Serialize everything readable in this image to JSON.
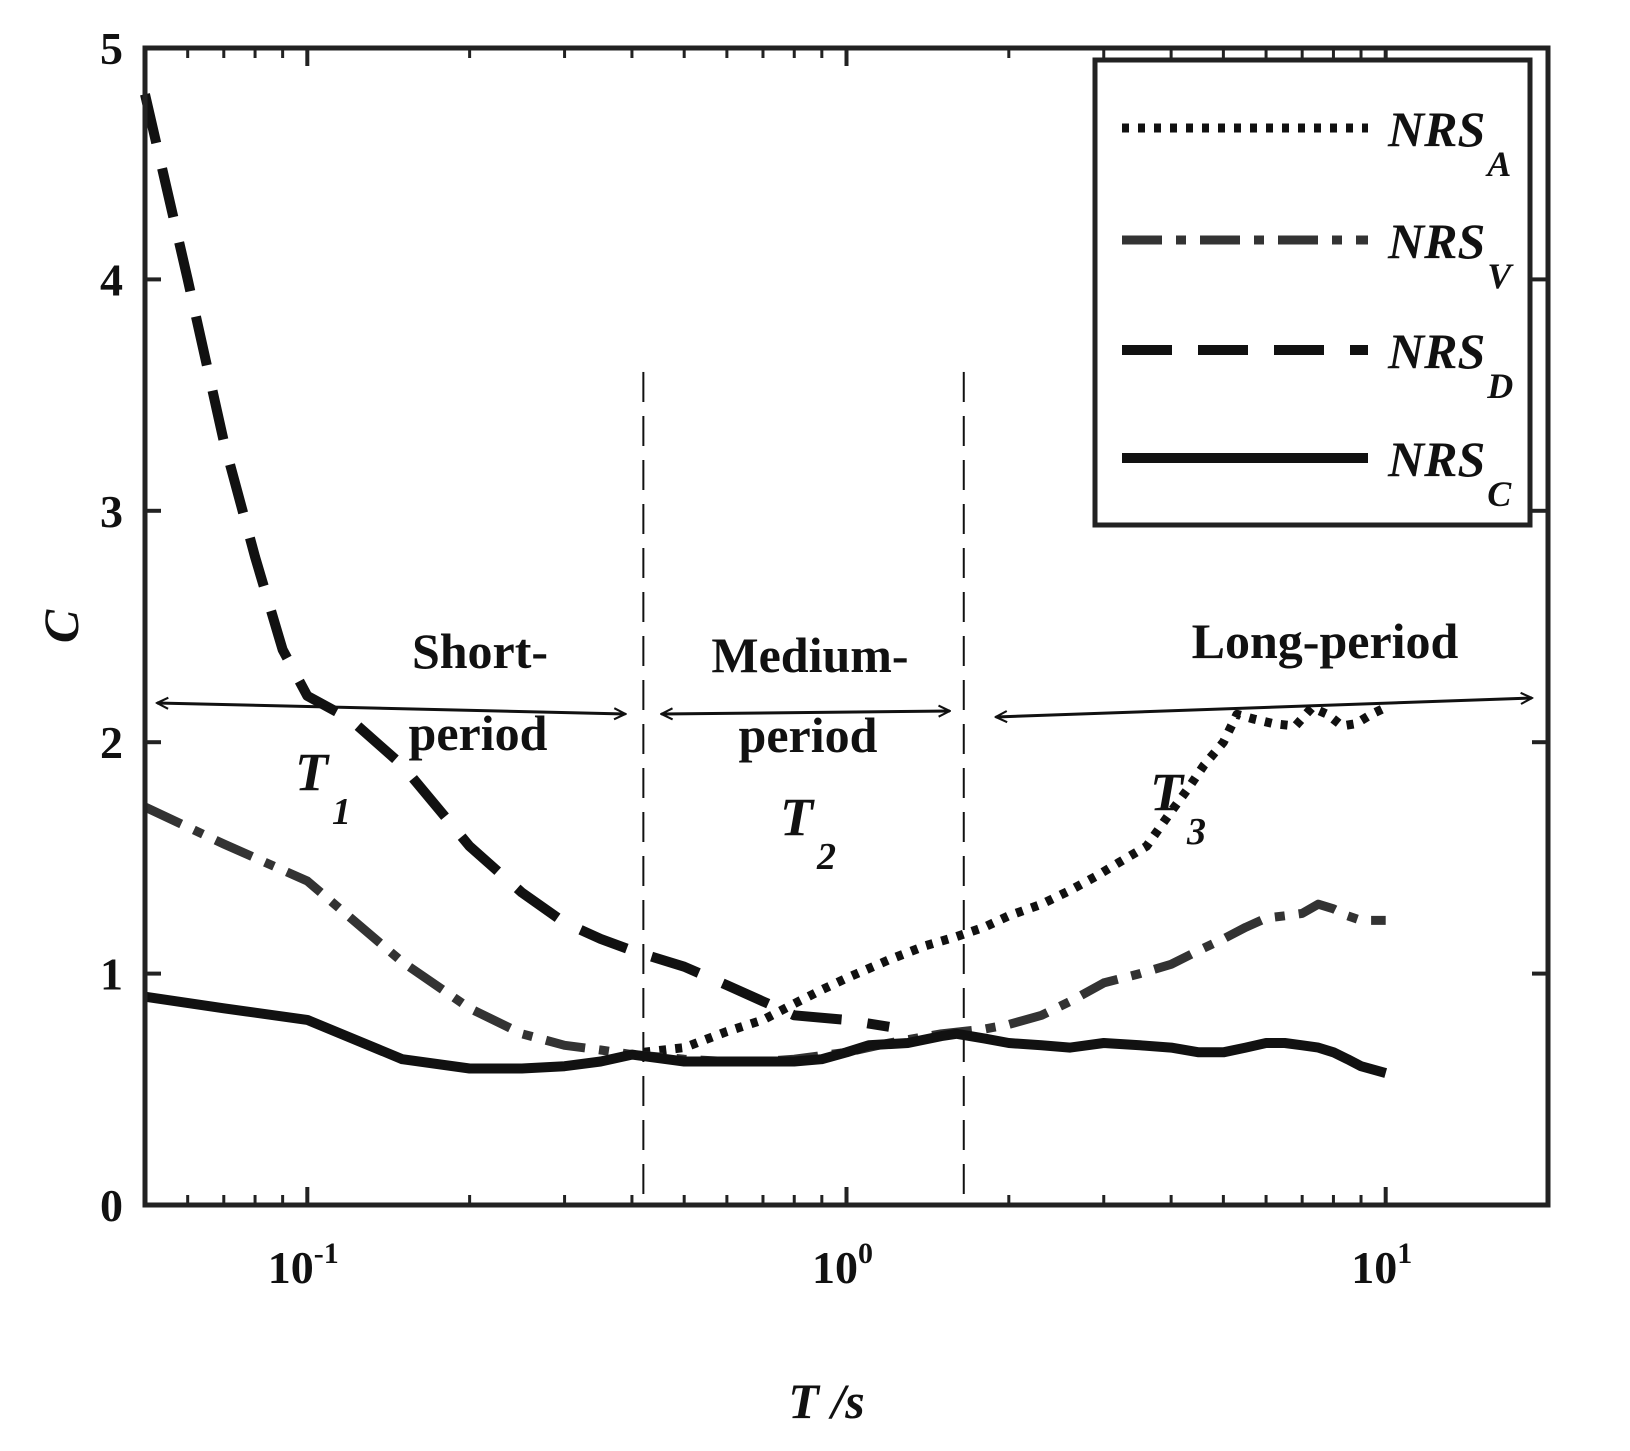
{
  "chart_data": {
    "type": "line",
    "title": "",
    "xlabel": "T /s",
    "ylabel": "C",
    "xscale": "log",
    "xlim": [
      0.05,
      20
    ],
    "ylim": [
      0,
      5
    ],
    "yticks": [
      0,
      1,
      2,
      3,
      4,
      5
    ],
    "xticks_major": [
      {
        "value": 0.1,
        "base": "10",
        "exp": "-1"
      },
      {
        "value": 1,
        "base": "10",
        "exp": "0"
      },
      {
        "value": 10,
        "base": "10",
        "exp": "1"
      }
    ],
    "legend": {
      "position": "top-right"
    },
    "series": [
      {
        "name": "NRS_A",
        "label_main": "NRS",
        "label_sub": "A",
        "style": "dotted",
        "points": [
          [
            0.42,
            0.66
          ],
          [
            0.5,
            0.68
          ],
          [
            0.6,
            0.75
          ],
          [
            0.7,
            0.8
          ],
          [
            0.8,
            0.87
          ],
          [
            0.9,
            0.93
          ],
          [
            1.0,
            0.98
          ],
          [
            1.2,
            1.06
          ],
          [
            1.4,
            1.12
          ],
          [
            1.6,
            1.16
          ],
          [
            1.8,
            1.2
          ],
          [
            2.0,
            1.25
          ],
          [
            2.3,
            1.3
          ],
          [
            2.6,
            1.36
          ],
          [
            2.9,
            1.42
          ],
          [
            3.2,
            1.48
          ],
          [
            3.6,
            1.55
          ],
          [
            4.0,
            1.7
          ],
          [
            4.3,
            1.8
          ],
          [
            4.6,
            1.9
          ],
          [
            5.0,
            2.0
          ],
          [
            5.3,
            2.12
          ],
          [
            5.7,
            2.1
          ],
          [
            6.2,
            2.08
          ],
          [
            6.8,
            2.07
          ],
          [
            7.3,
            2.15
          ],
          [
            7.8,
            2.12
          ],
          [
            8.3,
            2.07
          ],
          [
            8.8,
            2.08
          ],
          [
            9.4,
            2.12
          ],
          [
            10.0,
            2.15
          ]
        ]
      },
      {
        "name": "NRS_V",
        "label_main": "NRS",
        "label_sub": "V",
        "style": "dash-dot",
        "points": [
          [
            0.05,
            1.72
          ],
          [
            0.07,
            1.56
          ],
          [
            0.1,
            1.4
          ],
          [
            0.15,
            1.05
          ],
          [
            0.2,
            0.85
          ],
          [
            0.25,
            0.74
          ],
          [
            0.3,
            0.69
          ],
          [
            0.35,
            0.67
          ],
          [
            0.4,
            0.65
          ],
          [
            0.5,
            0.63
          ],
          [
            0.6,
            0.62
          ],
          [
            0.7,
            0.62
          ],
          [
            0.8,
            0.63
          ],
          [
            1.0,
            0.66
          ],
          [
            1.2,
            0.7
          ],
          [
            1.5,
            0.74
          ],
          [
            1.8,
            0.76
          ],
          [
            2.0,
            0.78
          ],
          [
            2.3,
            0.82
          ],
          [
            2.6,
            0.88
          ],
          [
            3.0,
            0.96
          ],
          [
            3.5,
            1.0
          ],
          [
            4.0,
            1.04
          ],
          [
            4.5,
            1.1
          ],
          [
            5.0,
            1.15
          ],
          [
            5.5,
            1.2
          ],
          [
            6.0,
            1.24
          ],
          [
            6.5,
            1.25
          ],
          [
            7.0,
            1.26
          ],
          [
            7.5,
            1.3
          ],
          [
            8.0,
            1.28
          ],
          [
            8.5,
            1.25
          ],
          [
            9.0,
            1.23
          ],
          [
            10.0,
            1.23
          ]
        ]
      },
      {
        "name": "NRS_D",
        "label_main": "NRS",
        "label_sub": "D",
        "style": "dashed",
        "points": [
          [
            0.05,
            4.8
          ],
          [
            0.06,
            4.0
          ],
          [
            0.07,
            3.3
          ],
          [
            0.08,
            2.8
          ],
          [
            0.09,
            2.4
          ],
          [
            0.1,
            2.2
          ],
          [
            0.12,
            2.1
          ],
          [
            0.15,
            1.9
          ],
          [
            0.2,
            1.55
          ],
          [
            0.25,
            1.35
          ],
          [
            0.3,
            1.22
          ],
          [
            0.35,
            1.15
          ],
          [
            0.4,
            1.1
          ],
          [
            0.5,
            1.03
          ],
          [
            0.6,
            0.95
          ],
          [
            0.7,
            0.88
          ],
          [
            0.8,
            0.82
          ],
          [
            1.0,
            0.8
          ],
          [
            1.2,
            0.77
          ]
        ]
      },
      {
        "name": "NRS_C",
        "label_main": "NRS",
        "label_sub": "C",
        "style": "solid",
        "points": [
          [
            0.05,
            0.9
          ],
          [
            0.07,
            0.85
          ],
          [
            0.1,
            0.8
          ],
          [
            0.15,
            0.63
          ],
          [
            0.2,
            0.59
          ],
          [
            0.25,
            0.59
          ],
          [
            0.3,
            0.6
          ],
          [
            0.35,
            0.62
          ],
          [
            0.4,
            0.65
          ],
          [
            0.5,
            0.62
          ],
          [
            0.6,
            0.62
          ],
          [
            0.7,
            0.62
          ],
          [
            0.8,
            0.62
          ],
          [
            0.9,
            0.63
          ],
          [
            1.0,
            0.66
          ],
          [
            1.1,
            0.69
          ],
          [
            1.3,
            0.7
          ],
          [
            1.5,
            0.73
          ],
          [
            1.6,
            0.74
          ],
          [
            1.8,
            0.72
          ],
          [
            2.0,
            0.7
          ],
          [
            2.3,
            0.69
          ],
          [
            2.6,
            0.68
          ],
          [
            3.0,
            0.7
          ],
          [
            3.5,
            0.69
          ],
          [
            4.0,
            0.68
          ],
          [
            4.5,
            0.66
          ],
          [
            5.0,
            0.66
          ],
          [
            5.5,
            0.68
          ],
          [
            6.0,
            0.7
          ],
          [
            6.5,
            0.7
          ],
          [
            7.0,
            0.69
          ],
          [
            7.5,
            0.68
          ],
          [
            8.0,
            0.66
          ],
          [
            8.5,
            0.63
          ],
          [
            9.0,
            0.6
          ],
          [
            10.0,
            0.57
          ]
        ]
      }
    ],
    "regions": [
      {
        "id": "short",
        "line1": "Short-",
        "line2": "period",
        "symbol": "T",
        "sub": "1",
        "x_start": 0.05,
        "x_end": 0.42
      },
      {
        "id": "medium",
        "line1": "Medium-",
        "line2": "period",
        "symbol": "T",
        "sub": "2",
        "x_start": 0.42,
        "x_end": 1.65
      },
      {
        "id": "long",
        "line1": "Long-period",
        "line2": "",
        "symbol": "T",
        "sub": "3",
        "x_start": 1.65,
        "x_end": 20
      }
    ],
    "boundaries": [
      0.42,
      1.65
    ]
  }
}
